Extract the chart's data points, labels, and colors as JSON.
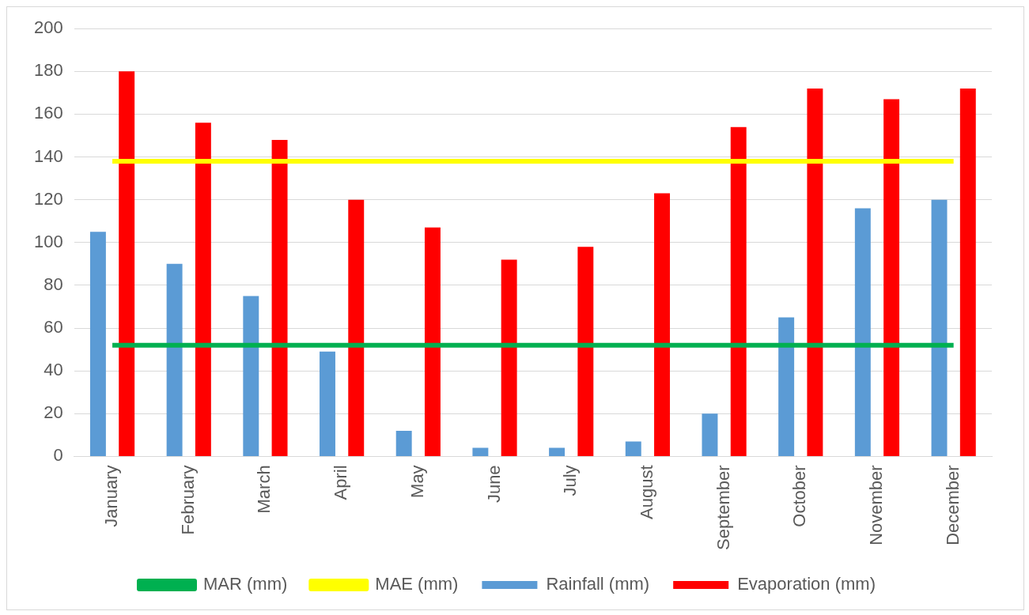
{
  "chart_data": {
    "type": "bar",
    "categories": [
      "January",
      "February",
      "March",
      "April",
      "May",
      "June",
      "July",
      "August",
      "September",
      "October",
      "November",
      "December"
    ],
    "series": [
      {
        "name": "Rainfall (mm)",
        "color": "#5b9bd5",
        "values": [
          105,
          90,
          75,
          49,
          12,
          4,
          4,
          7,
          20,
          65,
          116,
          120
        ]
      },
      {
        "name": "Evaporation (mm)",
        "color": "#ff0000",
        "values": [
          180,
          156,
          148,
          120,
          107,
          92,
          98,
          123,
          154,
          172,
          167,
          172
        ]
      },
      {
        "name": "MAR (mm)",
        "type": "line",
        "color": "#00b050",
        "values": [
          52,
          52,
          52,
          52,
          52,
          52,
          52,
          52,
          52,
          52,
          52,
          52
        ]
      },
      {
        "name": "MAE (mm)",
        "type": "line",
        "color": "#ffff00",
        "values": [
          138,
          138,
          138,
          138,
          138,
          138,
          138,
          138,
          138,
          138,
          138,
          138
        ]
      }
    ],
    "ylim": [
      0,
      200
    ],
    "yticks": [
      0,
      20,
      40,
      60,
      80,
      100,
      120,
      140,
      160,
      180,
      200
    ],
    "grid": "y",
    "legend": "bottom"
  }
}
